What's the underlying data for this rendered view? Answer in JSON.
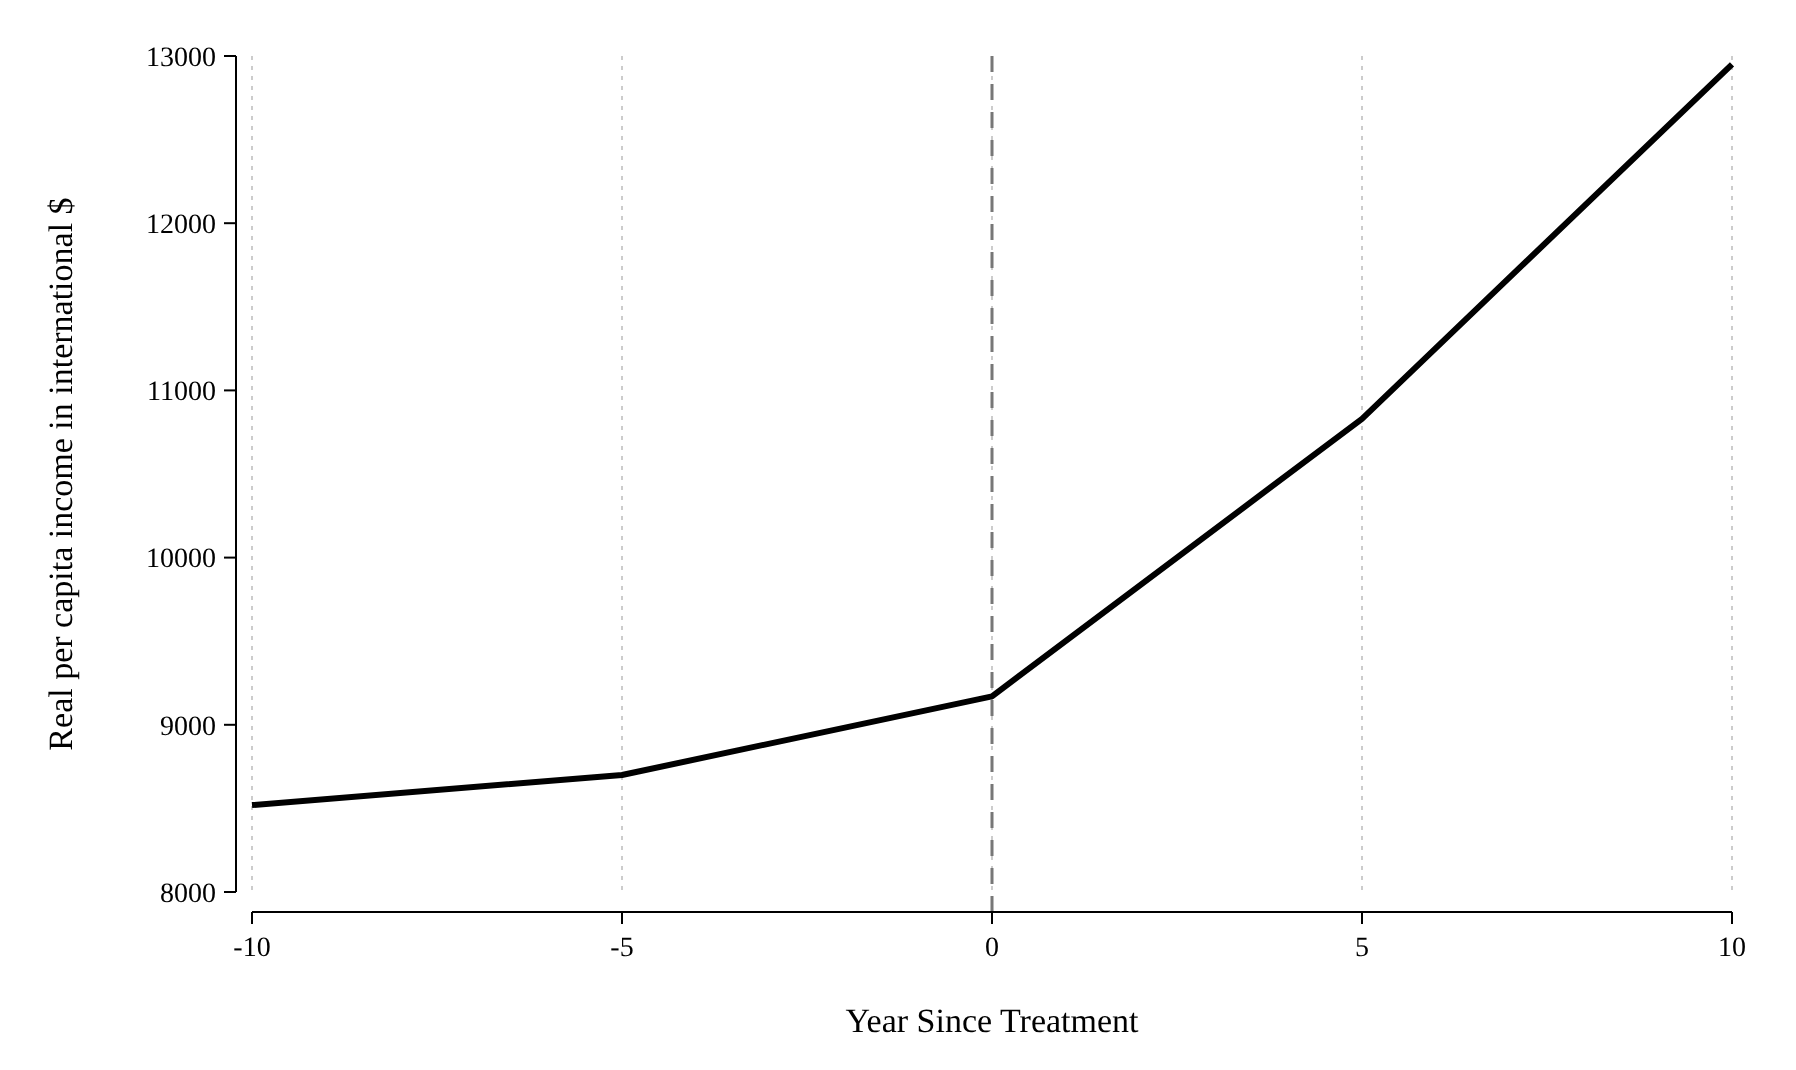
{
  "chart_data": {
    "type": "line",
    "xlabel": "Year Since Treatment",
    "ylabel": "Real per capita income in international $",
    "x": [
      -10,
      -5,
      0,
      5,
      10
    ],
    "series": [
      {
        "color": "#000000",
        "values": [
          8520,
          8700,
          9170,
          10830,
          12950
        ]
      }
    ],
    "xlim": [
      -10,
      10
    ],
    "xticks": [
      -10,
      -5,
      0,
      5,
      10
    ],
    "ylim": [
      8000,
      13000
    ],
    "yticks": [
      8000,
      9000,
      10000,
      11000,
      12000,
      13000
    ],
    "grid": "x",
    "marker": "none",
    "line_style": "solid",
    "ref_lines": [
      {
        "axis": "x",
        "value": 0,
        "color": "#777777",
        "line_style": "dashed"
      }
    ]
  }
}
